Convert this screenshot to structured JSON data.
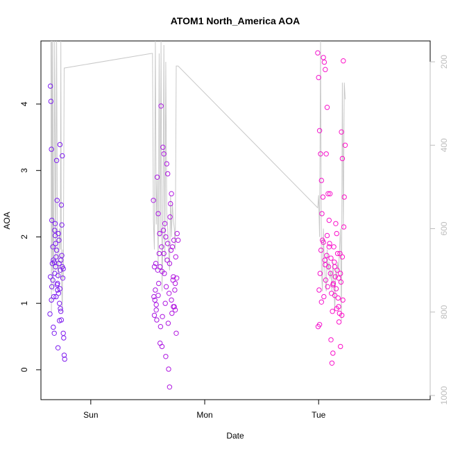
{
  "chart_data": {
    "type": "scatter",
    "title": "ATOM1 North_America AOA",
    "xlabel": "Date",
    "ylabel": "AOA",
    "x_ticks": [
      "Sun",
      "Mon",
      "Tue"
    ],
    "x_tick_positions_hours": [
      0,
      24,
      48
    ],
    "xlim_hours": [
      -10.5,
      71.5
    ],
    "ylim": [
      -0.45,
      4.95
    ],
    "y_ticks": [
      0,
      1,
      2,
      3,
      4
    ],
    "y2_ticks": [
      200,
      400,
      600,
      800,
      1000
    ],
    "y2lim_reversed": [
      1010,
      150
    ],
    "grid": false,
    "line_color": "#c8c8c8",
    "point_color_start": "#7a1af0",
    "point_color_end": "#ff10c8",
    "points": {
      "clusters": [
        {
          "x_hours": [
            -8.6,
            -8.5,
            -8.4,
            -8.3,
            -8.2,
            -8.1,
            -8.0,
            -7.9,
            -7.8,
            -7.7,
            -7.6,
            -7.5,
            -7.4,
            -7.3,
            -7.2,
            -7.1,
            -7.0,
            -6.9,
            -6.8,
            -6.7,
            -6.6,
            -6.5,
            -6.4,
            -6.3,
            -6.2,
            -6.1,
            -6.0,
            -5.9,
            -5.8,
            -5.7,
            -5.6,
            -5.5
          ],
          "y": [
            0.84,
            4.27,
            4.04,
            3.32,
            2.25,
            1.6,
            1.35,
            0.64,
            1.1,
            0.55,
            2.1,
            2.2,
            1.55,
            1.7,
            3.15,
            2.55,
            1.2,
            0.33,
            2.05,
            1.95,
            0.74,
            3.39,
            1.5,
            1.65,
            2.48,
            2.18,
            3.22,
            1.38,
            0.55,
            0.48,
            0.22,
            0.16
          ]
        },
        {
          "x_hours": [
            -8.5,
            -8.2,
            -7.9,
            -7.6,
            -7.4,
            -7.2,
            -7.0,
            -6.8,
            -6.6,
            -6.4,
            -6.3,
            -6.2,
            -6.0,
            -5.8,
            -8.3,
            -7.7,
            -7.1,
            -6.9,
            -6.5,
            -6.1,
            -8.0,
            -7.5,
            -7.3,
            -6.7
          ],
          "y": [
            1.4,
            1.25,
            1.65,
            1.45,
            1.9,
            1.8,
            1.3,
            1.15,
            1.0,
            0.92,
            0.88,
            0.75,
            1.55,
            1.52,
            1.05,
            1.62,
            1.28,
            1.42,
            1.22,
            1.72,
            1.85,
            2.02,
            1.1,
            1.6
          ]
        },
        {
          "x_hours": [
            13.2,
            13.4,
            13.6,
            13.8,
            14.0,
            14.2,
            14.4,
            14.6,
            14.8,
            15.0,
            15.2,
            15.4,
            15.6,
            15.8,
            16.0,
            16.2,
            16.4,
            16.6,
            16.8,
            17.0,
            17.2,
            17.4,
            17.6,
            17.8,
            18.0,
            18.2,
            18.4
          ],
          "y": [
            2.55,
            1.55,
            1.2,
            0.9,
            2.9,
            2.35,
            1.75,
            0.4,
            3.97,
            0.35,
            3.35,
            3.25,
            2.2,
            0.2,
            3.1,
            2.95,
            0.01,
            -0.26,
            2.5,
            2.65,
            1.85,
            1.4,
            0.95,
            0.9,
            0.55,
            2.05,
            1.95
          ]
        },
        {
          "x_hours": [
            13.3,
            13.5,
            13.7,
            13.9,
            14.1,
            14.3,
            14.5,
            14.7,
            14.9,
            15.1,
            15.3,
            15.5,
            15.7,
            15.9,
            16.1,
            16.3,
            16.5,
            16.7,
            16.9,
            17.1,
            17.3,
            17.5,
            17.7,
            17.9,
            18.1,
            13.4,
            13.8,
            14.2,
            14.6,
            15.0,
            15.4,
            15.8,
            16.2,
            16.6,
            17.0,
            17.4,
            17.8
          ],
          "y": [
            1.1,
            1.05,
            1.6,
            0.75,
            1.5,
            1.3,
            2.05,
            0.65,
            1.85,
            0.8,
            2.1,
            1.45,
            1.0,
            1.25,
            1.65,
            0.7,
            1.15,
            2.3,
            1.8,
            0.85,
            1.35,
            1.95,
            1.2,
            1.7,
            1.38,
            0.82,
            0.98,
            1.12,
            1.55,
            1.48,
            1.75,
            2.0,
            1.9,
            1.6,
            1.05,
            0.95,
            1.3
          ]
        },
        {
          "x_hours": [
            47.8,
            48.0,
            48.2,
            48.4,
            48.6,
            48.8,
            49.0,
            49.2,
            49.4,
            49.6,
            49.8,
            50.0,
            50.2,
            50.4,
            50.6,
            50.8,
            51.0,
            51.2,
            51.4,
            51.6,
            51.8,
            52.0,
            52.2,
            52.4,
            52.6,
            52.8,
            53.0,
            53.2,
            53.4,
            53.6
          ],
          "y": [
            4.77,
            4.4,
            3.6,
            3.25,
            2.85,
            1.95,
            4.7,
            4.63,
            4.52,
            3.25,
            3.95,
            2.65,
            2.25,
            2.65,
            0.45,
            0.1,
            0.25,
            1.85,
            1.55,
            2.2,
            2.05,
            1.75,
            0.95,
            0.85,
            0.35,
            3.58,
            3.18,
            4.65,
            2.6,
            3.38
          ]
        },
        {
          "x_hours": [
            47.9,
            48.1,
            48.3,
            48.5,
            48.7,
            48.9,
            49.1,
            49.3,
            49.5,
            49.7,
            49.9,
            50.1,
            50.3,
            50.5,
            50.7,
            50.9,
            51.1,
            51.3,
            51.5,
            51.7,
            51.9,
            52.1,
            52.3,
            52.5,
            52.7,
            52.9,
            53.1,
            53.3,
            48.2,
            48.6,
            49.0,
            49.4,
            49.8,
            50.2,
            50.6,
            51.0,
            51.4,
            51.8,
            52.2,
            52.6,
            53.0
          ],
          "y": [
            0.65,
            1.2,
            1.45,
            1.8,
            2.35,
            2.6,
            1.1,
            1.65,
            1.35,
            1.72,
            1.25,
            1.55,
            1.9,
            1.45,
            1.15,
            0.88,
            1.3,
            1.62,
            1.4,
            1.22,
            1.5,
            1.08,
            0.72,
            1.75,
            1.32,
            0.82,
            1.05,
            2.15,
            0.68,
            1.02,
            1.92,
            1.58,
            2.02,
            1.85,
            1.68,
            1.28,
            1.12,
            0.92,
            1.38,
            1.45,
            1.7
          ]
        }
      ]
    },
    "line": {
      "note_units": "y2 (reversed secondary axis)",
      "x_hours": [
        -8.4,
        -8.3,
        -8.2,
        -8.1,
        -8.0,
        -7.9,
        -7.8,
        -7.6,
        -7.4,
        -7.2,
        -7.0,
        -6.8,
        -6.6,
        -6.4,
        -6.3,
        -6.2,
        -6.1,
        -6.0,
        -5.9,
        -5.8,
        -5.6,
        12.8,
        13.0,
        13.2,
        13.4,
        13.6,
        13.8,
        14.0,
        14.2,
        14.4,
        14.6,
        14.8,
        15.0,
        15.2,
        15.4,
        15.6,
        15.8,
        16.0,
        16.2,
        16.4,
        16.6,
        16.8,
        17.0,
        17.2,
        17.4,
        17.6,
        17.8,
        18.0,
        18.2,
        18.4,
        47.8,
        48.0,
        48.2,
        48.4,
        48.6,
        48.8,
        49.0,
        49.2,
        49.4,
        49.6,
        49.8,
        50.0,
        50.2,
        50.4,
        50.6,
        50.8,
        51.0,
        51.2,
        51.4,
        51.6,
        51.8,
        52.0,
        52.2,
        52.4,
        52.6,
        52.8,
        53.0,
        53.2,
        53.4,
        53.6
      ],
      "y2": [
        150,
        800,
        150,
        700,
        150,
        750,
        650,
        150,
        700,
        150,
        680,
        720,
        600,
        650,
        150,
        700,
        750,
        800,
        650,
        720,
        215,
        180,
        180,
        580,
        650,
        150,
        590,
        480,
        700,
        180,
        620,
        150,
        750,
        620,
        160,
        680,
        200,
        560,
        600,
        650,
        700,
        520,
        620,
        540,
        580,
        600,
        650,
        210,
        210,
        210,
        550,
        520,
        620,
        150,
        700,
        750,
        600,
        680,
        720,
        750,
        650,
        700,
        680,
        720,
        700,
        750,
        680,
        720,
        800,
        700,
        720,
        680,
        700,
        650,
        600,
        820,
        250,
        600,
        250,
        290
      ]
    }
  }
}
